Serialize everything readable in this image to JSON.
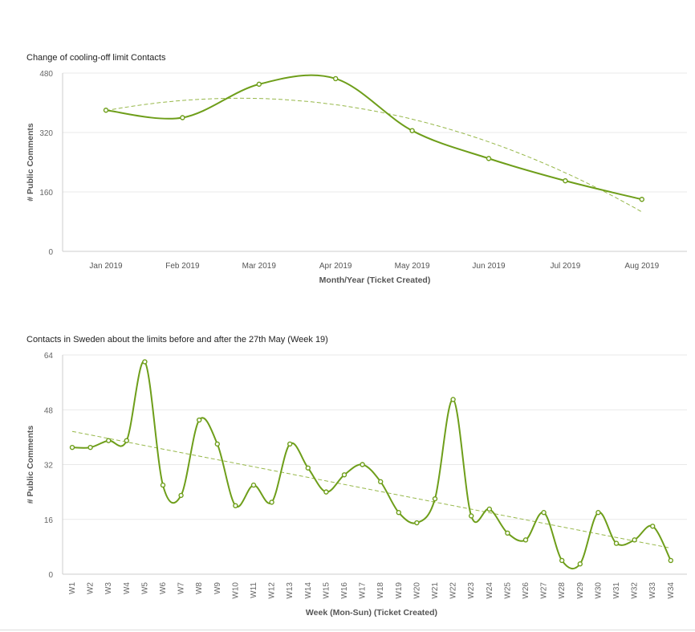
{
  "accent_color": "#6e9e1a",
  "chart_data": [
    {
      "type": "line",
      "title": "Change of cooling-off limit Contacts",
      "xlabel": "Month/Year (Ticket Created)",
      "ylabel": "# Public Comments",
      "categories": [
        "Jan 2019",
        "Feb 2019",
        "Mar 2019",
        "Apr 2019",
        "May 2019",
        "Jun 2019",
        "Jul 2019",
        "Aug 2019"
      ],
      "values": [
        380,
        360,
        450,
        465,
        325,
        250,
        190,
        140
      ],
      "ylim": [
        0,
        480
      ],
      "yticks": [
        "0",
        "160",
        "320",
        "480"
      ],
      "trendline": "polynomial (dashed)",
      "grid": true
    },
    {
      "type": "line",
      "title": "Contacts in Sweden about the limits before and after the 27th May (Week 19)",
      "xlabel": "Week (Mon-Sun) (Ticket Created)",
      "ylabel": "# Public Comments",
      "categories": [
        "W1",
        "W2",
        "W3",
        "W4",
        "W5",
        "W6",
        "W7",
        "W8",
        "W9",
        "W10",
        "W11",
        "W12",
        "W13",
        "W14",
        "W15",
        "W16",
        "W17",
        "W18",
        "W19",
        "W20",
        "W21",
        "W22",
        "W23",
        "W24",
        "W25",
        "W26",
        "W27",
        "W28",
        "W29",
        "W30",
        "W31",
        "W32",
        "W33",
        "W34"
      ],
      "values": [
        37,
        37,
        39,
        39,
        62,
        26,
        23,
        45,
        38,
        20,
        26,
        21,
        38,
        31,
        24,
        29,
        32,
        27,
        18,
        15,
        22,
        51,
        17,
        19,
        12,
        10,
        18,
        4,
        3,
        18,
        9,
        10,
        14,
        4
      ],
      "ylim": [
        0,
        64
      ],
      "yticks": [
        "0",
        "16",
        "32",
        "48",
        "64"
      ],
      "trendline": "linear (dashed)",
      "grid": true
    }
  ]
}
